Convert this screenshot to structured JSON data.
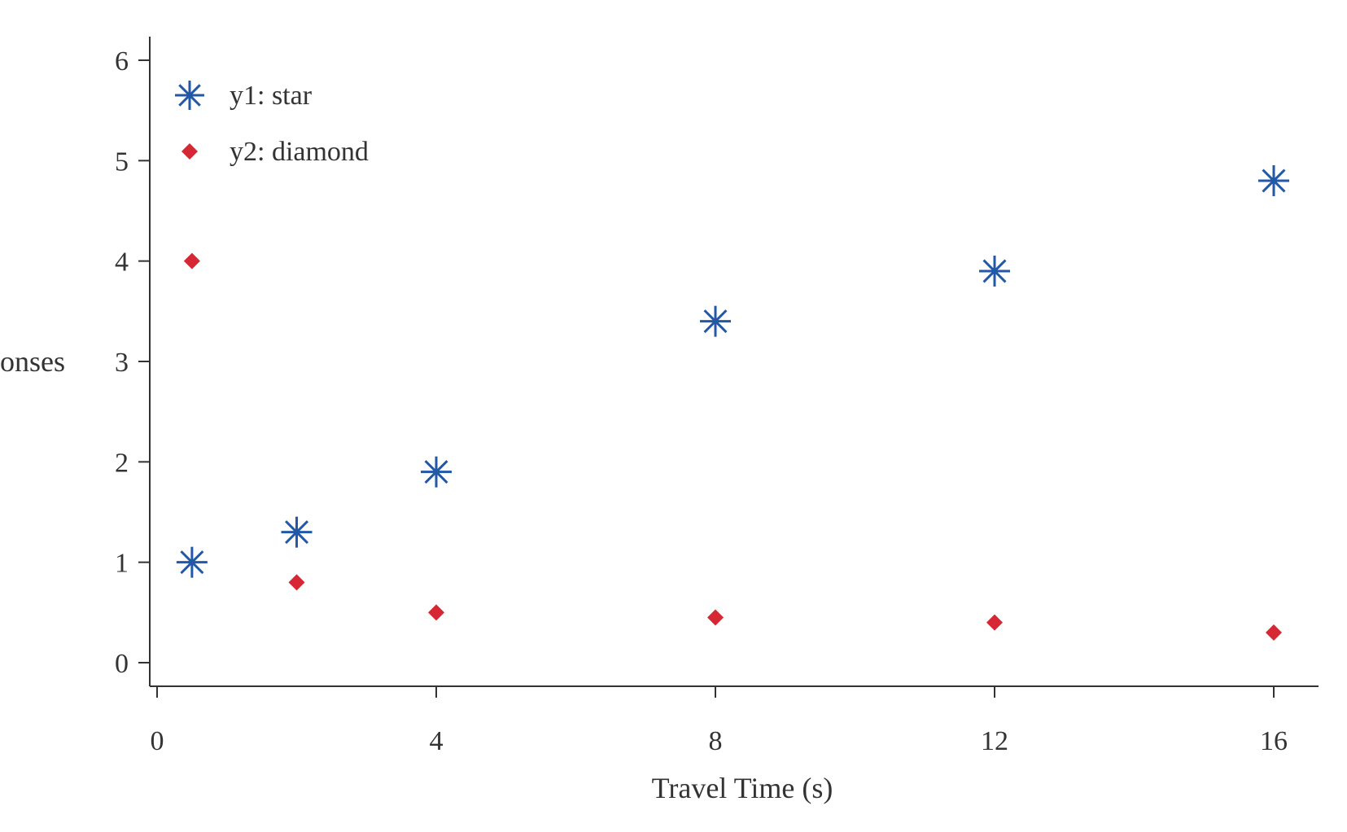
{
  "chart_data": {
    "type": "scatter",
    "title": "",
    "xlabel": "Travel Time (s)",
    "ylabel": "Responses",
    "xlim": [
      -0.3,
      16.6
    ],
    "ylim": [
      -0.25,
      6.25
    ],
    "x_ticks": [
      0,
      4,
      8,
      12,
      16
    ],
    "y_ticks": [
      0,
      1,
      2,
      3,
      4,
      5,
      6
    ],
    "grid": false,
    "legend_position": "top-left",
    "series": [
      {
        "name": "y1: star",
        "marker": "star",
        "color": "#2358a6",
        "points": [
          {
            "x": 0.5,
            "y": 1.0
          },
          {
            "x": 2,
            "y": 1.3
          },
          {
            "x": 4,
            "y": 1.9
          },
          {
            "x": 8,
            "y": 3.4
          },
          {
            "x": 12,
            "y": 3.9
          },
          {
            "x": 16,
            "y": 4.8
          }
        ]
      },
      {
        "name": "y2: diamond",
        "marker": "diamond",
        "color": "#d62734",
        "points": [
          {
            "x": 0.5,
            "y": 4.0
          },
          {
            "x": 2,
            "y": 0.8
          },
          {
            "x": 4,
            "y": 0.5
          },
          {
            "x": 8,
            "y": 0.45
          },
          {
            "x": 12,
            "y": 0.4
          },
          {
            "x": 16,
            "y": 0.3
          }
        ]
      }
    ]
  }
}
